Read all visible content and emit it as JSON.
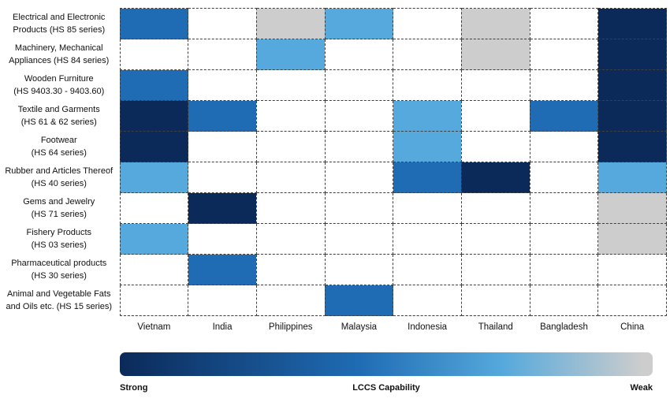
{
  "chart_data": {
    "type": "heatmap",
    "columns": [
      "Vietnam",
      "India",
      "Philippines",
      "Malaysia",
      "Indonesia",
      "Thailand",
      "Bangladesh",
      "China"
    ],
    "rows": [
      [
        "Electrical and Electronic",
        "Products (HS 85 series)"
      ],
      [
        "Machinery, Mechanical",
        "Appliances (HS 84 series)"
      ],
      [
        "Wooden Furniture",
        "(HS 9403.30 - 9403.60)"
      ],
      [
        "Textile and Garments",
        "(HS 61 & 62 series)"
      ],
      [
        "Footwear",
        "(HS 64 series)"
      ],
      [
        "Rubber and Articles Thereof",
        "(HS 40 series)"
      ],
      [
        "Gems and Jewelry",
        "(HS 71 series)"
      ],
      [
        "Fishery Products",
        "(HS 03 series)"
      ],
      [
        "Pharmaceutical products",
        "(HS 30 series)"
      ],
      [
        "Animal and Vegetable Fats",
        "and Oils etc. (HS 15 series)"
      ]
    ],
    "values": [
      [
        "medium",
        null,
        "weak",
        "light",
        null,
        "weak",
        null,
        "strong"
      ],
      [
        null,
        null,
        "light",
        null,
        null,
        "weak",
        null,
        "strong"
      ],
      [
        "medium",
        null,
        null,
        null,
        null,
        null,
        null,
        "strong"
      ],
      [
        "strong",
        "medium",
        null,
        null,
        "light",
        null,
        "medium",
        "strong"
      ],
      [
        "strong",
        null,
        null,
        null,
        "light",
        null,
        null,
        "strong"
      ],
      [
        "light",
        null,
        null,
        null,
        "medium",
        "strong",
        null,
        "light"
      ],
      [
        null,
        "strong",
        null,
        null,
        null,
        null,
        null,
        "weak"
      ],
      [
        "light",
        null,
        null,
        null,
        null,
        null,
        null,
        "weak"
      ],
      [
        null,
        "medium",
        null,
        null,
        null,
        null,
        null,
        null
      ],
      [
        null,
        null,
        null,
        "medium",
        null,
        null,
        null,
        null
      ]
    ],
    "value_scale_meaning": "LCCS capability level per country and product category: strong > medium > light > weak; blank = not notable",
    "capability_scale": {
      "strong_label": "Strong",
      "center_label": "LCCS Capability",
      "weak_label": "Weak"
    },
    "colors": {
      "strong": "#0b2a5a",
      "medium": "#1f6cb4",
      "light": "#56a9dc",
      "weak": "#cdcdcd",
      "none": "#ffffff"
    },
    "grid": "dashed",
    "legend_position": "bottom"
  }
}
